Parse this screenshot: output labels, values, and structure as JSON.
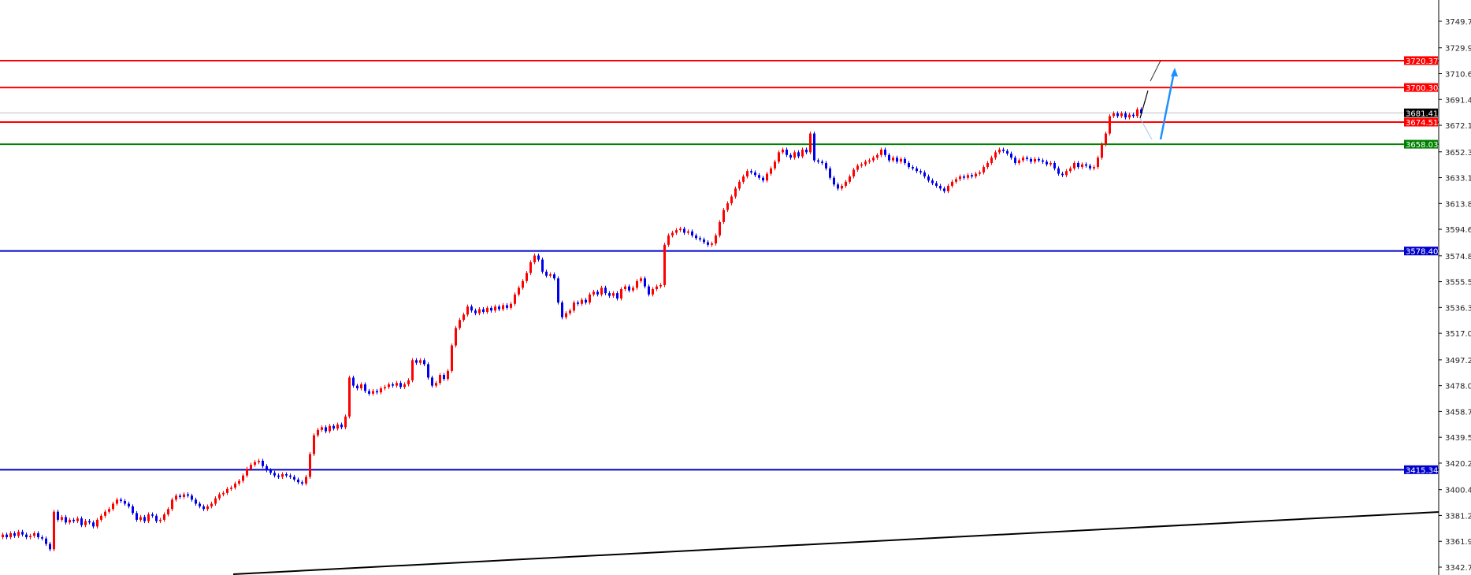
{
  "chart_data": {
    "type": "candlestick",
    "title": "",
    "xlabel": "",
    "ylabel": "",
    "ylim": [
      3342.7,
      3749.7
    ],
    "grid": false,
    "colors": {
      "up": "#ff0000",
      "down": "#0000ee",
      "axis": "#000000"
    },
    "y_ticks": [
      "3749.70",
      "3729.90",
      "3710.65",
      "3691.40",
      "3672.15",
      "3652.35",
      "3633.10",
      "3613.85",
      "3594.60",
      "3574.80",
      "3555.55",
      "3536.30",
      "3517.05",
      "3497.25",
      "3478.00",
      "3458.75",
      "3439.50",
      "3420.25",
      "3400.45",
      "3381.20",
      "3361.95",
      "3342.70"
    ],
    "first_open": 3365,
    "closes": [
      3367,
      3365,
      3368,
      3366,
      3369,
      3367,
      3365,
      3366,
      3368,
      3365,
      3364,
      3360,
      3356,
      3384,
      3378,
      3380,
      3376,
      3378,
      3377,
      3379,
      3374,
      3377,
      3376,
      3373,
      3378,
      3381,
      3384,
      3386,
      3390,
      3393,
      3392,
      3390,
      3388,
      3383,
      3378,
      3380,
      3377,
      3382,
      3381,
      3377,
      3378,
      3382,
      3386,
      3393,
      3396,
      3395,
      3397,
      3396,
      3393,
      3390,
      3388,
      3386,
      3388,
      3390,
      3394,
      3397,
      3398,
      3401,
      3402,
      3405,
      3407,
      3411,
      3416,
      3419,
      3421,
      3422,
      3418,
      3415,
      3413,
      3411,
      3410,
      3412,
      3411,
      3410,
      3408,
      3406,
      3405,
      3410,
      3427,
      3441,
      3445,
      3447,
      3444,
      3448,
      3446,
      3449,
      3447,
      3455,
      3484,
      3478,
      3476,
      3479,
      3474,
      3472,
      3474,
      3473,
      3476,
      3477,
      3479,
      3478,
      3480,
      3477,
      3479,
      3482,
      3497,
      3495,
      3497,
      3494,
      3484,
      3478,
      3480,
      3486,
      3483,
      3489,
      3508,
      3521,
      3527,
      3531,
      3537,
      3534,
      3532,
      3535,
      3533,
      3536,
      3534,
      3537,
      3535,
      3538,
      3536,
      3539,
      3546,
      3551,
      3556,
      3562,
      3570,
      3575,
      3572,
      3563,
      3560,
      3561,
      3558,
      3540,
      3529,
      3532,
      3534,
      3540,
      3539,
      3542,
      3540,
      3546,
      3548,
      3546,
      3551,
      3547,
      3545,
      3547,
      3543,
      3550,
      3552,
      3549,
      3551,
      3556,
      3558,
      3552,
      3546,
      3550,
      3552,
      3553,
      3583,
      3590,
      3592,
      3594,
      3595,
      3592,
      3593,
      3590,
      3588,
      3587,
      3585,
      3583,
      3584,
      3590,
      3600,
      3609,
      3614,
      3619,
      3625,
      3630,
      3634,
      3638,
      3637,
      3635,
      3633,
      3631,
      3636,
      3640,
      3645,
      3652,
      3654,
      3650,
      3648,
      3652,
      3649,
      3654,
      3652,
      3666,
      3646,
      3645,
      3644,
      3640,
      3633,
      3628,
      3625,
      3627,
      3630,
      3634,
      3639,
      3642,
      3643,
      3645,
      3646,
      3648,
      3650,
      3654,
      3650,
      3646,
      3648,
      3645,
      3647,
      3644,
      3641,
      3640,
      3638,
      3637,
      3634,
      3631,
      3629,
      3627,
      3625,
      3623,
      3627,
      3630,
      3632,
      3634,
      3633,
      3635,
      3634,
      3636,
      3637,
      3641,
      3644,
      3648,
      3652,
      3654,
      3653,
      3651,
      3648,
      3644,
      3646,
      3648,
      3647,
      3645,
      3647,
      3646,
      3645,
      3643,
      3644,
      3640,
      3636,
      3635,
      3638,
      3640,
      3644,
      3641,
      3643,
      3642,
      3640,
      3641,
      3648,
      3658,
      3666,
      3679,
      3681,
      3679,
      3681,
      3678,
      3680,
      3679,
      3684,
      3681
    ],
    "levels": [
      {
        "price": 3720.37,
        "label": "3720.37",
        "color": "#ff0000"
      },
      {
        "price": 3700.3,
        "label": "3700.30",
        "color": "#ff0000"
      },
      {
        "price": 3674.51,
        "label": "3674.51",
        "color": "#ff0000"
      },
      {
        "price": 3658.03,
        "label": "3658.03",
        "color": "#008000"
      },
      {
        "price": 3578.4,
        "label": "3578.40",
        "color": "#0000cc"
      },
      {
        "price": 3415.34,
        "label": "3415.34",
        "color": "#0000cc"
      }
    ],
    "current_price": {
      "price": 3681.41,
      "label": "3681.41",
      "color": "#000000",
      "line_color": "#c0c0c0"
    },
    "trendline": {
      "start_price": 3337.4,
      "end_price": 3383.8,
      "color": "#000000"
    },
    "projection_arrow_color": "#1e90ff"
  }
}
